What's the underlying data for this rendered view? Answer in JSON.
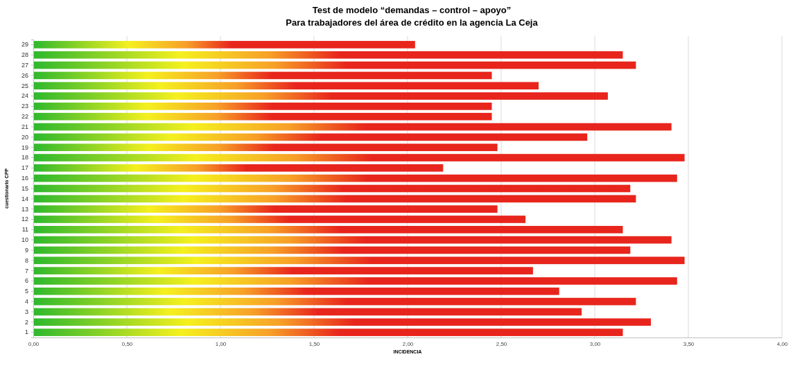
{
  "chart_data": {
    "type": "bar",
    "orientation": "horizontal",
    "title": "Test de modelo “demandas – control – apoyo”",
    "subtitle": "Para trabajadores del área de crédito en la agencia La Ceja",
    "xlabel": "INCIDENCIA",
    "ylabel": "cuestionario CPP",
    "categories": [
      "29",
      "28",
      "27",
      "26",
      "25",
      "24",
      "23",
      "22",
      "21",
      "20",
      "19",
      "18",
      "17",
      "16",
      "15",
      "14",
      "13",
      "12",
      "11",
      "10",
      "9",
      "8",
      "7",
      "6",
      "5",
      "4",
      "3",
      "2",
      "1"
    ],
    "series": [
      {
        "color": "#e8251c",
        "values": [
          2.04,
          3.15,
          3.22,
          2.45,
          2.7,
          3.07,
          2.45,
          2.45,
          3.41,
          2.96,
          2.48,
          3.48,
          2.19,
          3.44,
          3.19,
          3.22,
          2.48,
          2.63,
          3.15,
          3.41,
          3.19,
          3.48,
          2.67,
          3.44,
          2.81,
          3.22,
          2.93,
          3.3,
          3.15
        ]
      }
    ],
    "xlim": [
      0,
      4
    ],
    "xticks": [
      {
        "value": 0,
        "label": "0,00"
      },
      {
        "value": 0.5,
        "label": "0,50"
      },
      {
        "value": 1,
        "label": "1,00"
      },
      {
        "value": 1.5,
        "label": "1,50"
      },
      {
        "value": 2,
        "label": "2,00"
      },
      {
        "value": 2.5,
        "label": "2,50"
      },
      {
        "value": 3,
        "label": "3,00"
      },
      {
        "value": 3.5,
        "label": "3,50"
      },
      {
        "value": 4,
        "label": "4,00"
      }
    ],
    "grid": "x"
  }
}
